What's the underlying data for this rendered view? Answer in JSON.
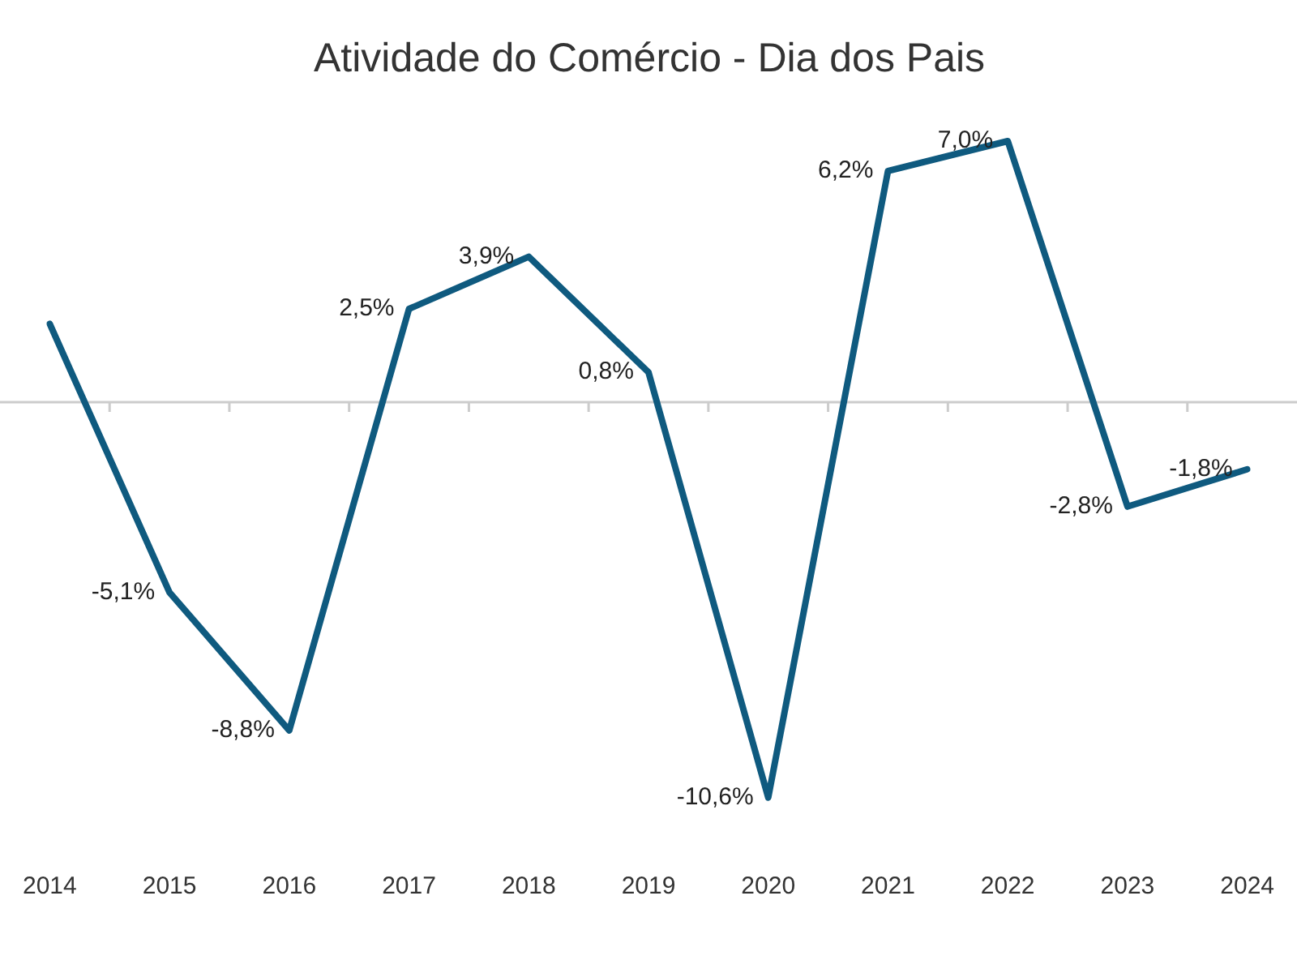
{
  "chart_data": {
    "type": "line",
    "title": "Atividade do Comércio - Dia dos Pais",
    "categories": [
      "2014",
      "2015",
      "2016",
      "2017",
      "2018",
      "2019",
      "2020",
      "2021",
      "2022",
      "2023",
      "2024"
    ],
    "series": [
      {
        "color": "#0f5a7f",
        "values": [
          2.1,
          -5.1,
          -8.8,
          2.5,
          3.9,
          0.8,
          -10.6,
          6.2,
          7.0,
          -2.8,
          -1.8
        ],
        "value_labels": [
          null,
          "-5,1%",
          "-8,8%",
          "2,5%",
          "3,9%",
          "0,8%",
          "-10,6%",
          "6,2%",
          "7,0%",
          "-2,8%",
          "-1,8%"
        ]
      }
    ],
    "tick_labels": "x",
    "grid": false,
    "legend": false,
    "marker": "none",
    "line_style": "solid",
    "ref_lines": [
      {
        "axis": "y",
        "value": 0,
        "color": "#cccccc"
      }
    ]
  }
}
